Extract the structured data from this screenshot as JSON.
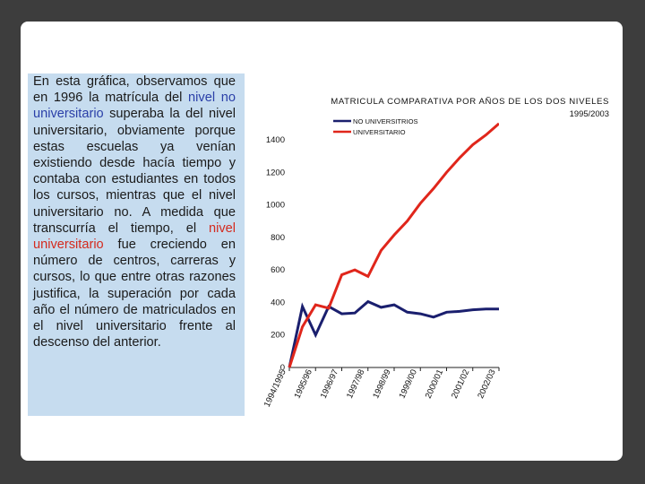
{
  "slide": {
    "paragraph": [
      {
        "text": "En esta gráfica, observamos que en 1996 la matrícula del ",
        "style": "normal"
      },
      {
        "text": "nivel no universitario",
        "style": "blue"
      },
      {
        "text": " superaba la del nivel universitario, obviamente porque estas escuelas ya venían existiendo desde hacía tiempo y contaba con estudiantes en todos los cursos, mientras que el nivel universitario no. A medida que transcurría el tiempo, el ",
        "style": "normal"
      },
      {
        "text": "nivel universitario",
        "style": "red"
      },
      {
        "text": " fue creciendo en número de centros, carreras y cursos, lo que entre otras razones justifica, la superación por cada año el número de matriculados en el nivel universitario frente al descenso del anterior.",
        "style": "normal"
      }
    ],
    "colors": {
      "background_frame": "#3d3d3d",
      "text_box": "#c6dcef",
      "highlight_blue": "#2a3fa8",
      "highlight_red": "#d42a1e"
    }
  },
  "chart_data": {
    "type": "line",
    "title": "MATRICULA COMPARATIVA POR AÑOS DE LOS DOS NIVELES",
    "subtitle": "1995/2003",
    "xlabel": "",
    "ylabel": "",
    "categories": [
      "1994/1995",
      "1995/96",
      "1996/97",
      "1997/98",
      "1998/99",
      "1999/00",
      "2000/01",
      "2001/02",
      "2002/03"
    ],
    "ylim": [
      0,
      1400
    ],
    "yticks": [
      0,
      200,
      400,
      600,
      800,
      1000,
      1200,
      1400
    ],
    "grid": false,
    "legend": "top",
    "series": [
      {
        "name": "NO UNIVERSITRIOS",
        "color": "#1a1f6e",
        "x": [
          0,
          0.5,
          1,
          1.5,
          2,
          2.5,
          3,
          3.5,
          4,
          4.5,
          5,
          5.5,
          6,
          6.5,
          7,
          7.5,
          8
        ],
        "values": [
          0,
          375,
          200,
          375,
          330,
          335,
          405,
          370,
          385,
          340,
          330,
          310,
          340,
          345,
          355,
          360,
          360
        ]
      },
      {
        "name": "UNIVERSITARIO",
        "color": "#e0261b",
        "x": [
          0,
          0.5,
          1,
          1.5,
          2,
          2.5,
          3,
          3.5,
          4,
          4.5,
          5,
          5.5,
          6,
          6.5,
          7,
          7.5,
          8
        ],
        "values": [
          0,
          250,
          385,
          365,
          570,
          600,
          560,
          720,
          815,
          900,
          1010,
          1100,
          1200,
          1290,
          1370,
          1430,
          1500
        ]
      }
    ]
  }
}
